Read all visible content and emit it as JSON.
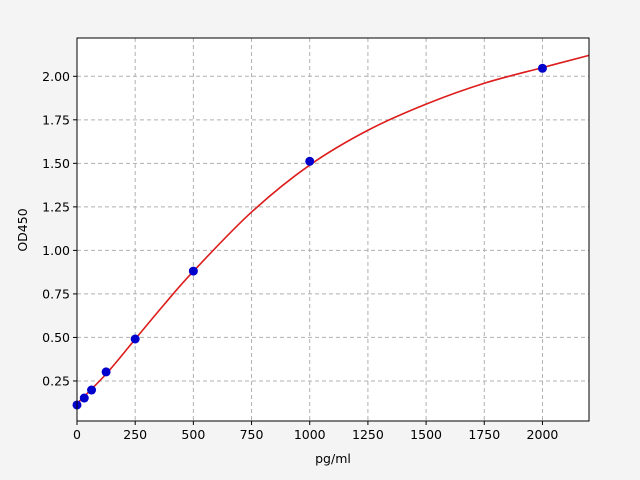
{
  "chart_data": {
    "type": "scatter",
    "title": "",
    "xlabel": "pg/ml",
    "ylabel": "OD450",
    "xlim": [
      0,
      2200
    ],
    "ylim": [
      0.02,
      2.22
    ],
    "xticks": [
      "0",
      "250",
      "500",
      "750",
      "1000",
      "1250",
      "1500",
      "1750",
      "2000"
    ],
    "yticks": [
      "0.25",
      "0.50",
      "0.75",
      "1.00",
      "1.25",
      "1.50",
      "1.75",
      "2.00"
    ],
    "grid": true,
    "points": {
      "x": [
        0,
        31.25,
        62.5,
        125,
        250,
        500,
        1000,
        2000
      ],
      "y": [
        0.112,
        0.152,
        0.198,
        0.302,
        0.491,
        0.881,
        1.512,
        2.046
      ],
      "color": "#0000cc"
    },
    "fit_curve": {
      "x": [
        0,
        125,
        250,
        375,
        500,
        750,
        1000,
        1250,
        1500,
        1750,
        2000,
        2200
      ],
      "y": [
        0.12,
        0.29,
        0.49,
        0.69,
        0.88,
        1.22,
        1.49,
        1.69,
        1.84,
        1.96,
        2.05,
        2.12
      ],
      "color": "#dd1c1c"
    }
  }
}
